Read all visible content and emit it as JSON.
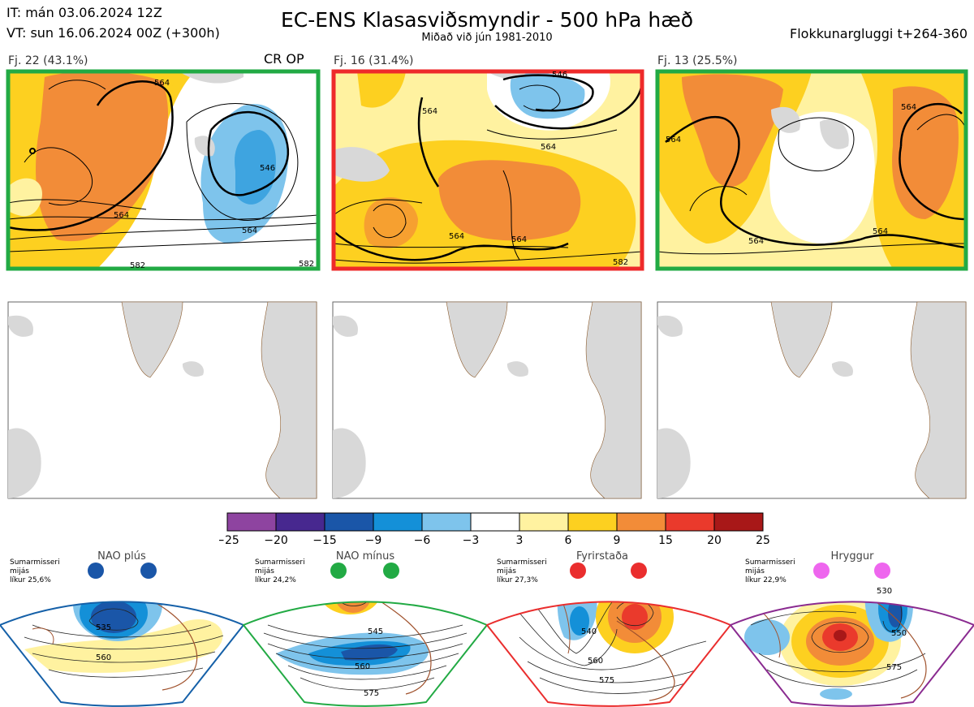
{
  "header": {
    "it_line": "IT: mán 03.06.2024 12Z",
    "vt_line": "VT: sun 16.06.2024 00Z  (+300h)",
    "title": "EC-ENS Klasasviðsmyndir - 500 hPa hæð",
    "subtitle": "Miðað við jún 1981-2010",
    "window": "Flokkunargluggi t+264-360"
  },
  "panels": [
    {
      "label": "Fj. 22 (43.1%)",
      "extra": "CR OP",
      "border": "#22aa44",
      "contours": [
        "564",
        "564",
        "546",
        "564",
        "582",
        "582"
      ]
    },
    {
      "label": "Fj. 16 (31.4%)",
      "extra": "",
      "border": "#ee2a2a",
      "contours": [
        "564",
        "564",
        "546",
        "564",
        "564",
        "582"
      ]
    },
    {
      "label": "Fj. 13 (25.5%)",
      "extra": "",
      "border": "#22aa44",
      "contours": [
        "564",
        "564",
        "564",
        "564"
      ]
    }
  ],
  "chart_data": {
    "type": "heatmap",
    "colorbar": {
      "ticks": [
        "−25",
        "−20",
        "−15",
        "−9",
        "−6",
        "−3",
        "3",
        "6",
        "9",
        "15",
        "20",
        "25"
      ],
      "colors": [
        "#8e44a0",
        "#47288f",
        "#1a56a8",
        "#1490d8",
        "#7ec4ec",
        "#ffffff",
        "#fff2a0",
        "#fdd020",
        "#f28c38",
        "#ea3a2c",
        "#a81818"
      ]
    }
  },
  "regimes": [
    {
      "name": "NAO plús",
      "season": "Sumarmisseri",
      "note": "mijás",
      "prob": "líkur 25,6%",
      "color": "#1560a8",
      "dot": "#1a56a8",
      "contours": [
        "535",
        "560"
      ]
    },
    {
      "name": "NAO mínus",
      "season": "Sumarmisseri",
      "note": "mijás",
      "prob": "líkur 24,2%",
      "color": "#22aa44",
      "dot": "#22aa44",
      "contours": [
        "545",
        "560",
        "575"
      ]
    },
    {
      "name": "Fyrirstaða",
      "season": "Sumarmisseri",
      "note": "mijás",
      "prob": "líkur 27,3%",
      "color": "#ea2e2e",
      "dot": "#ea2e2e",
      "contours": [
        "540",
        "560",
        "575"
      ]
    },
    {
      "name": "Hryggur",
      "season": "Sumarmisseri",
      "note": "mijás",
      "prob": "líkur 22,9%",
      "color": "#8a2b90",
      "dot": "#ee66ee",
      "contours": [
        "530",
        "550",
        "575"
      ]
    }
  ]
}
